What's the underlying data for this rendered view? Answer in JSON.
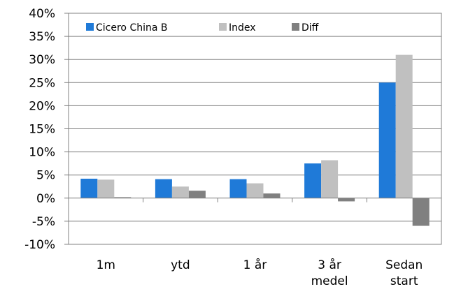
{
  "chart_data": {
    "type": "bar",
    "categories": [
      [
        "1m"
      ],
      [
        "ytd"
      ],
      [
        "1 år"
      ],
      [
        "3 år",
        "medel"
      ],
      [
        "Sedan",
        "start"
      ]
    ],
    "series": [
      {
        "name": "Cicero China B",
        "color": "#1f7ad8",
        "values": [
          4.2,
          4.1,
          4.1,
          7.5,
          25.0
        ]
      },
      {
        "name": "Index",
        "color": "#c0c0c0",
        "values": [
          4.0,
          2.5,
          3.2,
          8.2,
          31.0
        ]
      },
      {
        "name": "Diff",
        "color": "#808080",
        "values": [
          0.2,
          1.6,
          1.0,
          -0.7,
          -6.0
        ]
      }
    ],
    "y_ticks": [
      "40%",
      "35%",
      "30%",
      "25%",
      "20%",
      "15%",
      "10%",
      "5%",
      "0%",
      "-5%",
      "-10%"
    ],
    "ylim": [
      -10,
      40
    ],
    "ytick_step": 5,
    "grid": true,
    "legend_position": "top-left",
    "title": "",
    "xlabel": "",
    "ylabel": ""
  }
}
